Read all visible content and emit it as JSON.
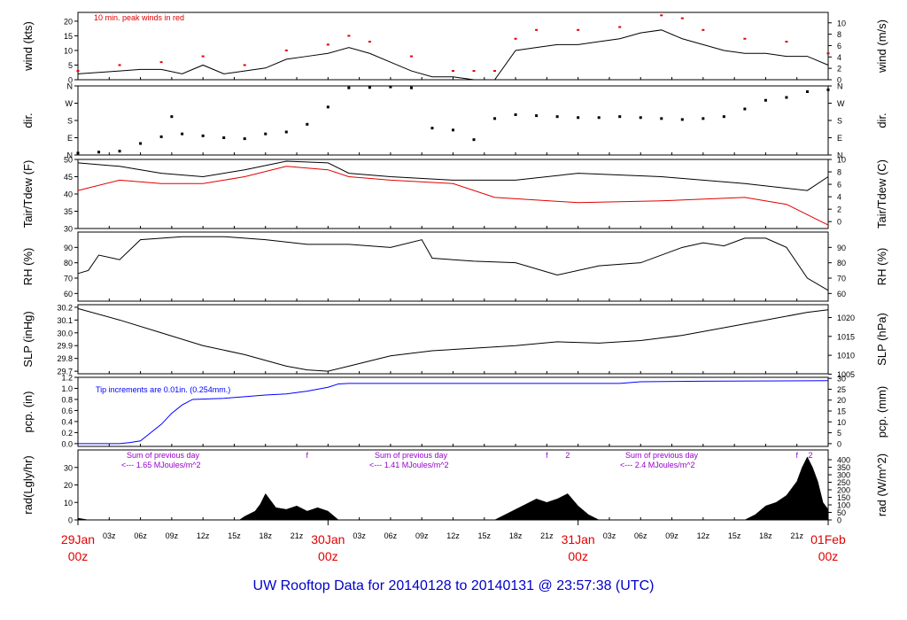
{
  "title": "UW Rooftop Data for 20140128  to  20140131 @ 23:57:38  (UTC)",
  "colors": {
    "primary": "#000000",
    "red": "#e00000",
    "blue": "#0000ff",
    "purple": "#9900cc",
    "title": "#0000cc"
  },
  "x_axis": {
    "hour_ticks": [
      "03z",
      "06z",
      "09z",
      "12z",
      "15z",
      "18z",
      "21z",
      "03z",
      "06z",
      "09z",
      "12z",
      "15z",
      "18z",
      "21z",
      "03z",
      "06z",
      "09z",
      "12z",
      "15z",
      "18z",
      "21z"
    ],
    "day_labels": [
      {
        "day": "29Jan",
        "time": "00z"
      },
      {
        "day": "30Jan",
        "time": "00z"
      },
      {
        "day": "31Jan",
        "time": "00z"
      },
      {
        "day": "01Feb",
        "time": "00z"
      }
    ]
  },
  "chart_data": [
    {
      "type": "line",
      "id": "wind",
      "ylabel_left": "wind (kts)",
      "ylabel_right": "wind (m/s)",
      "ylim": [
        0,
        23
      ],
      "yticks_left": [
        0,
        5,
        10,
        15,
        20
      ],
      "ylim_right": [
        0,
        11.83
      ],
      "yticks_right": [
        0,
        2,
        4,
        6,
        8,
        10
      ],
      "annotation": "10 min. peak winds in red",
      "series": [
        {
          "color": "#000000",
          "x": [
            0,
            2,
            4,
            6,
            8,
            10,
            12,
            14,
            16,
            18,
            20,
            22,
            24,
            26,
            28,
            30,
            32,
            34,
            36,
            38,
            40,
            42,
            44,
            46,
            48,
            50,
            52,
            54,
            56,
            58,
            60,
            62,
            64,
            66,
            68,
            70,
            72
          ],
          "y": [
            2,
            2.5,
            3,
            3.5,
            3.5,
            2,
            5,
            2,
            3,
            4,
            7,
            8,
            9,
            11,
            9,
            6,
            3,
            1,
            1,
            0,
            0,
            10,
            11,
            12,
            12,
            13,
            14,
            16,
            17,
            14,
            12,
            10,
            9,
            9,
            8,
            8,
            5
          ]
        },
        {
          "color": "#e00000",
          "x": [
            0,
            4,
            8,
            12,
            16,
            20,
            24,
            26,
            28,
            32,
            36,
            38,
            40,
            42,
            44,
            48,
            52,
            56,
            58,
            60,
            64,
            68,
            72
          ],
          "y": [
            3,
            5,
            6,
            8,
            5,
            10,
            12,
            15,
            13,
            8,
            3,
            3,
            3,
            14,
            17,
            17,
            18,
            22,
            21,
            17,
            14,
            13,
            9
          ]
        }
      ]
    },
    {
      "type": "scatter",
      "id": "dir",
      "ylabel_left": "dir.",
      "ylabel_right": "dir.",
      "ylim": [
        0,
        360
      ],
      "yticks_left": [
        "N",
        "E",
        "S",
        "W",
        "N"
      ],
      "yticks_right": [
        "N",
        "E",
        "S",
        "W",
        "N"
      ],
      "series": [
        {
          "color": "#000000",
          "x": [
            0,
            2,
            4,
            6,
            8,
            9,
            10,
            12,
            14,
            16,
            18,
            20,
            22,
            24,
            26,
            28,
            30,
            32,
            34,
            36,
            38,
            40,
            42,
            44,
            46,
            48,
            50,
            52,
            54,
            56,
            58,
            60,
            62,
            64,
            66,
            68,
            70,
            72
          ],
          "y": [
            10,
            15,
            20,
            60,
            95,
            200,
            110,
            100,
            90,
            85,
            110,
            120,
            160,
            250,
            350,
            352,
            355,
            350,
            140,
            130,
            80,
            190,
            210,
            205,
            200,
            195,
            195,
            200,
            195,
            190,
            185,
            190,
            200,
            240,
            285,
            300,
            330,
            340
          ]
        }
      ]
    },
    {
      "type": "line",
      "id": "temp",
      "ylabel_left": "Tair/Tdew (F)",
      "ylabel_right": "Tair/Tdew (C)",
      "ylim": [
        30,
        50
      ],
      "yticks_left": [
        30,
        35,
        40,
        45,
        50
      ],
      "ylim_right": [
        -1.11,
        10
      ],
      "yticks_right": [
        0,
        2,
        4,
        6,
        8,
        10
      ],
      "series": [
        {
          "name": "Tair",
          "color": "#000000",
          "x": [
            0,
            4,
            8,
            12,
            16,
            20,
            24,
            26,
            30,
            36,
            42,
            48,
            56,
            64,
            70,
            72
          ],
          "y": [
            49,
            48,
            46,
            45,
            47,
            49.5,
            49,
            46,
            45,
            44,
            44,
            46,
            45,
            43,
            41,
            45
          ]
        },
        {
          "name": "Tdew",
          "color": "#e00000",
          "x": [
            0,
            4,
            8,
            12,
            16,
            20,
            24,
            26,
            30,
            36,
            40,
            48,
            56,
            64,
            68,
            72
          ],
          "y": [
            41,
            44,
            43,
            43,
            45,
            48,
            47,
            45,
            44,
            43,
            39,
            37.5,
            38,
            39,
            37,
            31
          ]
        }
      ]
    },
    {
      "type": "line",
      "id": "rh",
      "ylabel_left": "RH (%)",
      "ylabel_right": "RH (%)",
      "ylim": [
        55,
        100
      ],
      "yticks_left": [
        60,
        70,
        80,
        90
      ],
      "yticks_right": [
        60,
        70,
        80,
        90
      ],
      "series": [
        {
          "color": "#000000",
          "x": [
            0,
            1,
            2,
            4,
            6,
            10,
            14,
            18,
            22,
            26,
            30,
            33,
            34,
            38,
            42,
            46,
            50,
            54,
            58,
            60,
            62,
            64,
            66,
            68,
            70,
            72
          ],
          "y": [
            73,
            75,
            85,
            82,
            95,
            97,
            97,
            95,
            92,
            92,
            90,
            95,
            83,
            81,
            80,
            72,
            78,
            80,
            90,
            93,
            91,
            96,
            96,
            90,
            70,
            62
          ]
        }
      ]
    },
    {
      "type": "line",
      "id": "slp",
      "ylabel_left": "SLP (inHg)",
      "ylabel_right": "SLP (hPa)",
      "ylim": [
        29.68,
        30.22
      ],
      "yticks_left": [
        29.7,
        29.8,
        29.9,
        30.0,
        30.1,
        30.2
      ],
      "ylim_right": [
        1005.1,
        1023.4
      ],
      "yticks_right": [
        1005,
        1010,
        1015,
        1020
      ],
      "series": [
        {
          "color": "#000000",
          "x": [
            0,
            4,
            8,
            12,
            16,
            20,
            22,
            24,
            26,
            30,
            34,
            38,
            42,
            46,
            50,
            54,
            58,
            62,
            66,
            70,
            72
          ],
          "y": [
            30.19,
            30.1,
            30.0,
            29.9,
            29.83,
            29.74,
            29.71,
            29.7,
            29.74,
            29.82,
            29.86,
            29.88,
            29.9,
            29.93,
            29.92,
            29.94,
            29.98,
            30.04,
            30.1,
            30.16,
            30.18
          ]
        }
      ]
    },
    {
      "type": "area",
      "id": "pcp",
      "ylabel_left": "pcp. (in)",
      "ylabel_right": "pcp.  (mm)",
      "ylim": [
        -0.05,
        1.2
      ],
      "yticks_left": [
        0.0,
        0.2,
        0.4,
        0.6,
        0.8,
        1.0,
        1.2
      ],
      "ylim_right": [
        -1.27,
        30.48
      ],
      "yticks_right": [
        0,
        5,
        10,
        15,
        20,
        25,
        30
      ],
      "annotation": "Tip increments are 0.01in.  (0.254mm.)",
      "series": [
        {
          "color": "#0000ff",
          "x": [
            0,
            3,
            4,
            5,
            6,
            7,
            8,
            9,
            10,
            11,
            14,
            16,
            18,
            20,
            22,
            24,
            25,
            26,
            40,
            52,
            54,
            60,
            72
          ],
          "y": [
            0,
            0,
            0,
            0.02,
            0.05,
            0.2,
            0.35,
            0.55,
            0.7,
            0.8,
            0.82,
            0.85,
            0.88,
            0.9,
            0.95,
            1.02,
            1.08,
            1.09,
            1.09,
            1.09,
            1.12,
            1.13,
            1.14
          ]
        }
      ]
    },
    {
      "type": "area",
      "id": "rad",
      "ylabel_left": "rad(Lgly/hr)",
      "ylabel_right": "rad (W/m^2)",
      "ylim": [
        0,
        40
      ],
      "yticks_left": [
        0,
        10,
        20,
        30
      ],
      "ylim_right": [
        0,
        465
      ],
      "yticks_right": [
        0,
        50,
        100,
        150,
        200,
        250,
        300,
        350,
        400
      ],
      "annotations": [
        {
          "line1": "Sum of previous day",
          "line2": "<--- 1.65 MJoules/m^2"
        },
        {
          "line1": "Sum of previous day",
          "line2": "<--- 1.41 MJoules/m^2"
        },
        {
          "line1": "Sum of previous day",
          "line2": "<--- 2.4 MJoules/m^2"
        }
      ],
      "markers": [
        {
          "label": "f",
          "x": 22
        },
        {
          "label": "f",
          "x": 45
        },
        {
          "label": "2",
          "x": 47
        },
        {
          "label": "f",
          "x": 69
        },
        {
          "label": "2",
          "x": 70.3
        }
      ],
      "series": [
        {
          "color": "#000000",
          "x": [
            0,
            0.5,
            1,
            15.5,
            16,
            17,
            17.5,
            18,
            19,
            20,
            21,
            22,
            23,
            24,
            25,
            40,
            41,
            42,
            43,
            44,
            45,
            46,
            47,
            48,
            49,
            50,
            64,
            65,
            66,
            67,
            68,
            69,
            69.5,
            70,
            70.5,
            71,
            71.5,
            72
          ],
          "y": [
            1,
            0.5,
            0,
            0,
            2,
            5,
            9,
            15,
            7,
            6,
            8,
            5,
            7,
            5,
            0,
            0,
            3,
            6,
            9,
            12,
            10,
            12,
            15,
            8,
            3,
            0,
            0,
            3,
            8,
            10,
            14,
            22,
            30,
            36,
            30,
            22,
            10,
            6
          ]
        }
      ]
    }
  ]
}
